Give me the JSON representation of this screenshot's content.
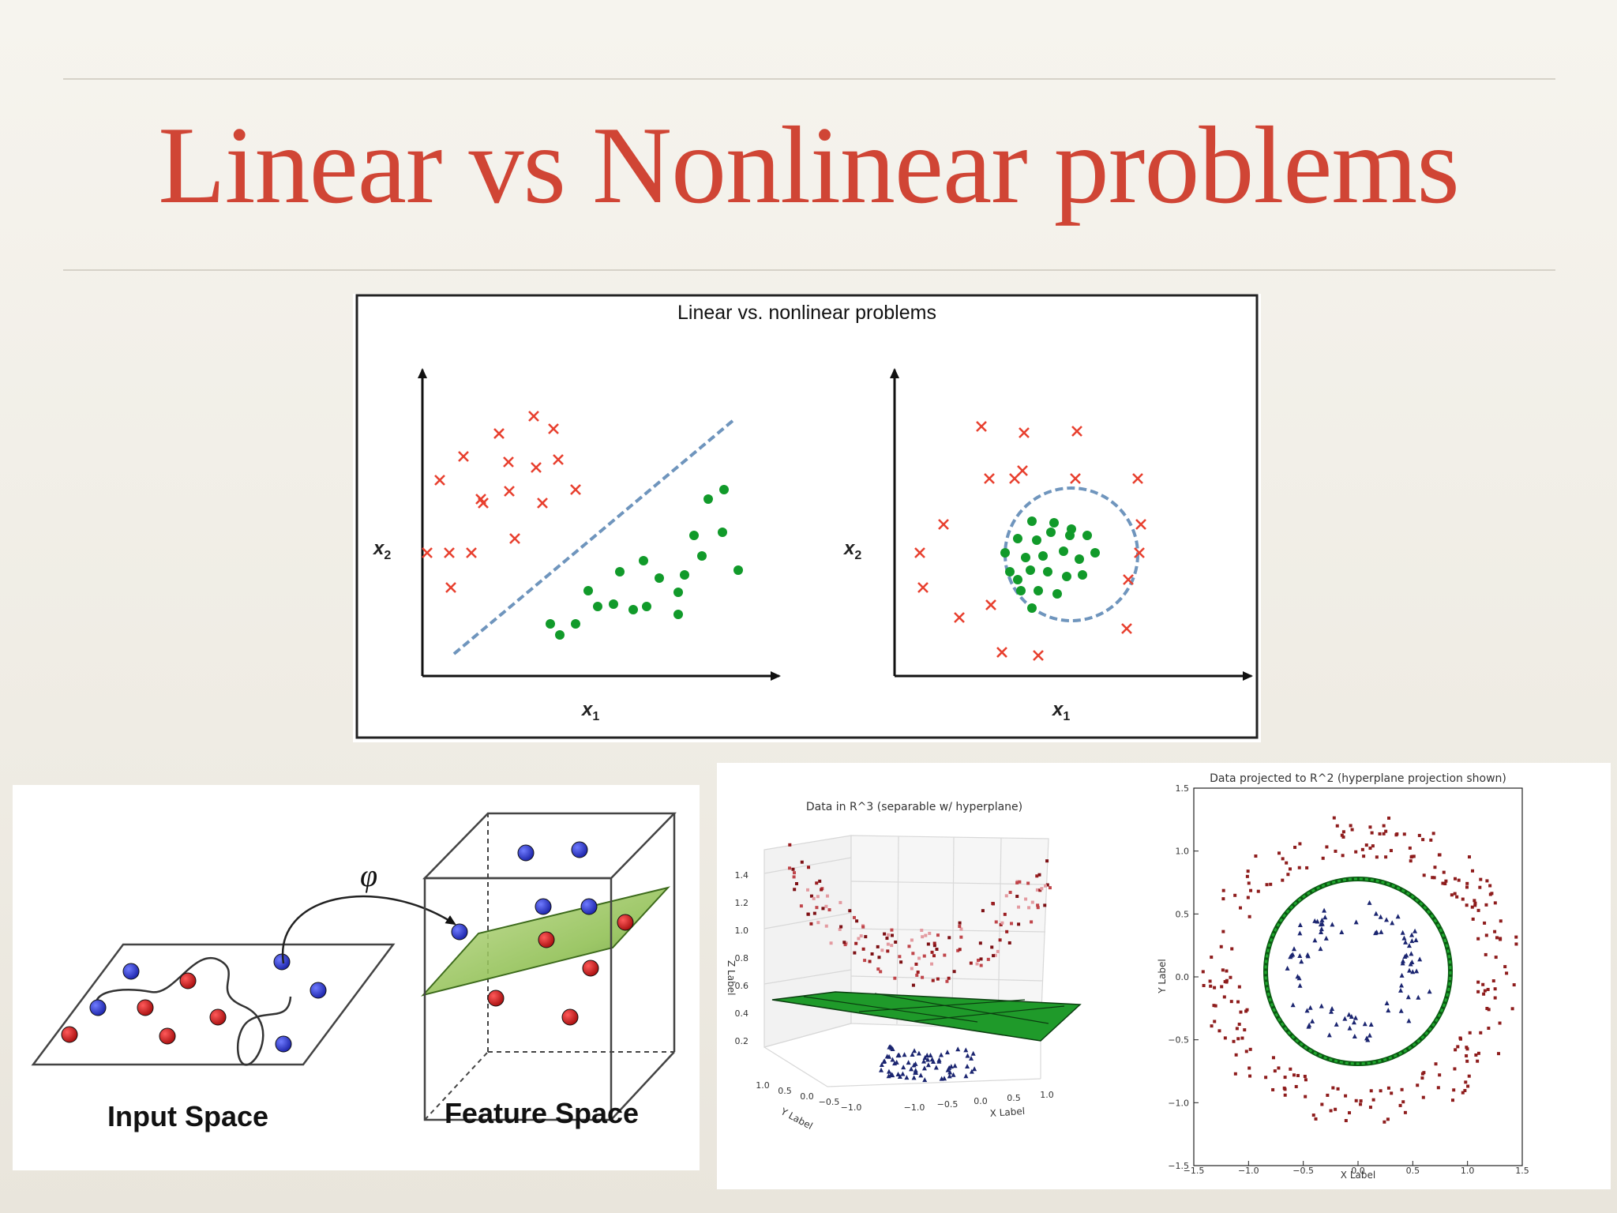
{
  "slide": {
    "title": "Linear vs Nonlinear problems"
  },
  "top_figure": {
    "title": "Linear vs. nonlinear problems",
    "left": {
      "xlabel": "x",
      "xsub": "1",
      "ylabel": "x",
      "ysub": "2"
    },
    "right": {
      "xlabel": "x",
      "xsub": "1",
      "ylabel": "x",
      "ysub": "2"
    }
  },
  "mapping_figure": {
    "phi": "φ",
    "input_label": "Input Space",
    "feature_label": "Feature Space"
  },
  "plot3d": {
    "title": "Data in R^3 (separable w/ hyperplane)",
    "zlabel": "Z Label",
    "xlabel": "X Label",
    "ylabel": "Y Label",
    "zticks": [
      "1.4",
      "1.2",
      "1.0",
      "0.8",
      "0.6",
      "0.4",
      "0.2"
    ],
    "xticks": [
      "−1.0",
      "−0.5",
      "0.0",
      "0.5",
      "1.0"
    ],
    "yticks": [
      "1.0",
      "0.5",
      "0.0",
      "−0.5",
      "−1.0"
    ]
  },
  "plot2d": {
    "title": "Data projected to R^2 (hyperplane projection shown)",
    "xlabel": "X Label",
    "ylabel": "Y Label",
    "yticks": [
      "1.5",
      "1.0",
      "0.5",
      "0.0",
      "−0.5",
      "−1.0",
      "−1.5"
    ],
    "xticks": [
      "−1.5",
      "−1.0",
      "−0.5",
      "0.0",
      "0.5",
      "1.0",
      "1.5"
    ]
  },
  "colors": {
    "title": "#d04535",
    "cross": "#e8402f",
    "dot_green": "#119a2a",
    "boundary": "#6f95bd",
    "blue_ball": "#2633c9",
    "red_ball": "#d21a1a",
    "plane": "#8ec050"
  }
}
